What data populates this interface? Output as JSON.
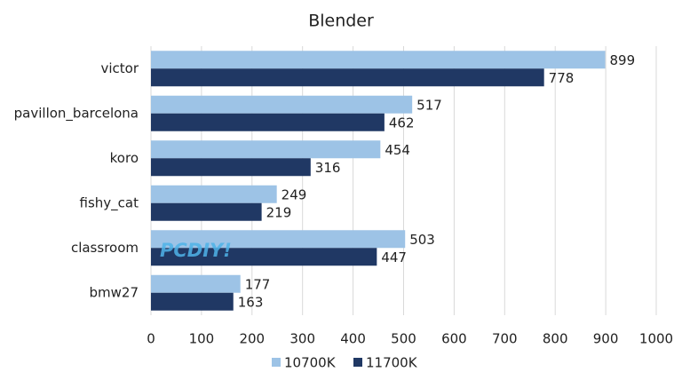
{
  "chart_data": {
    "type": "bar",
    "orientation": "horizontal",
    "title": "Blender",
    "categories": [
      "victor",
      "pavillon_barcelona",
      "koro",
      "fishy_cat",
      "classroom",
      "bmw27"
    ],
    "series": [
      {
        "name": "10700K",
        "color": "#9dc3e6",
        "values": [
          899,
          517,
          454,
          249,
          503,
          177
        ]
      },
      {
        "name": "11700K",
        "color": "#203864",
        "values": [
          778,
          462,
          316,
          219,
          447,
          163
        ]
      }
    ],
    "xlim": [
      0,
      1000
    ],
    "xticks": [
      0,
      100,
      200,
      300,
      400,
      500,
      600,
      700,
      800,
      900,
      1000
    ],
    "grid": true,
    "legend": "bottom",
    "annotation": "PCDIY!"
  }
}
